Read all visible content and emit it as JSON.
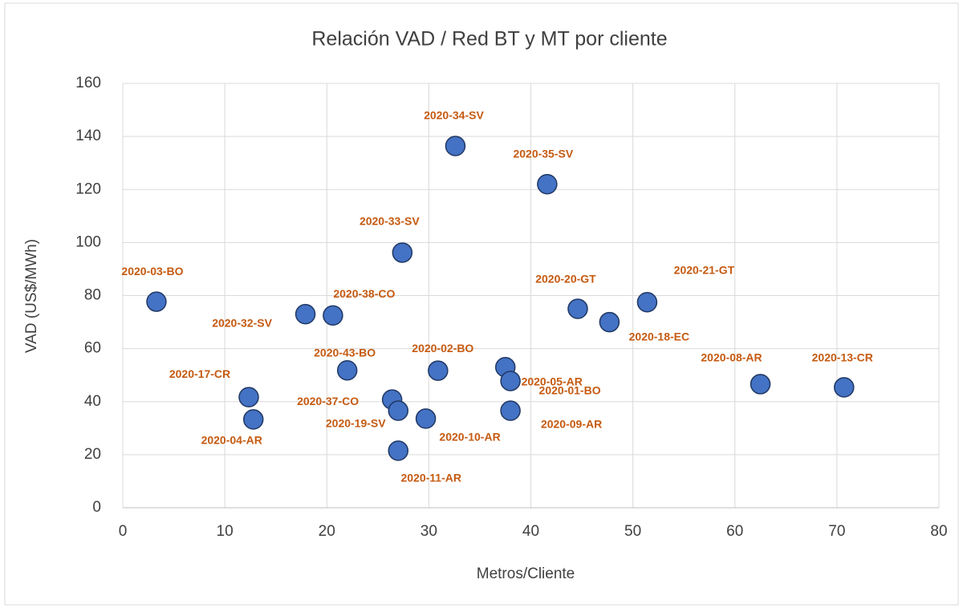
{
  "chart_data": {
    "type": "scatter",
    "title": "Relación VAD / Red BT y MT por cliente",
    "x_label": "Metros/Cliente",
    "y_label": "VAD (US$/MWh)",
    "series": [
      {
        "color": "#4472c4",
        "labels": [
          "2020-03-BO",
          "2020-32-SV",
          "2020-38-CO",
          "2020-34-SV",
          "2020-35-SV",
          "2020-33-SV",
          "2020-20-GT",
          "2020-21-GT",
          "2020-18-EC",
          "2020-43-BO",
          "2020-02-BO",
          "2020-05-AR",
          "2020-01-BO",
          "2020-09-AR",
          "2020-10-AR",
          "2020-37-CO",
          "2020-19-SV",
          "2020-11-AR",
          "2020-17-CR",
          "2020-04-AR",
          "2020-08-AR",
          "2020-13-CR"
        ],
        "x": [
          3.3,
          17.9,
          20.6,
          32.6,
          41.6,
          27.4,
          44.6,
          51.4,
          47.7,
          22.0,
          30.9,
          37.5,
          38.0,
          38.0,
          29.7,
          26.4,
          27.0,
          27.0,
          12.35,
          12.8,
          62.5,
          70.7
        ],
        "values": [
          77.7,
          73,
          72.5,
          136.4,
          122,
          96.2,
          75,
          77.5,
          70,
          51.8,
          51.7,
          53,
          47.8,
          36.6,
          33.6,
          40.8,
          36.6,
          21.5,
          41.7,
          33.3,
          46.6,
          45.4
        ]
      }
    ],
    "xlim": [
      0,
      80
    ],
    "xticks": [
      0,
      10,
      20,
      30,
      40,
      50,
      60,
      70,
      80
    ],
    "ylim": [
      0,
      160
    ],
    "yticks": [
      0,
      20,
      40,
      60,
      80,
      100,
      120,
      140,
      160
    ],
    "grid": true
  }
}
